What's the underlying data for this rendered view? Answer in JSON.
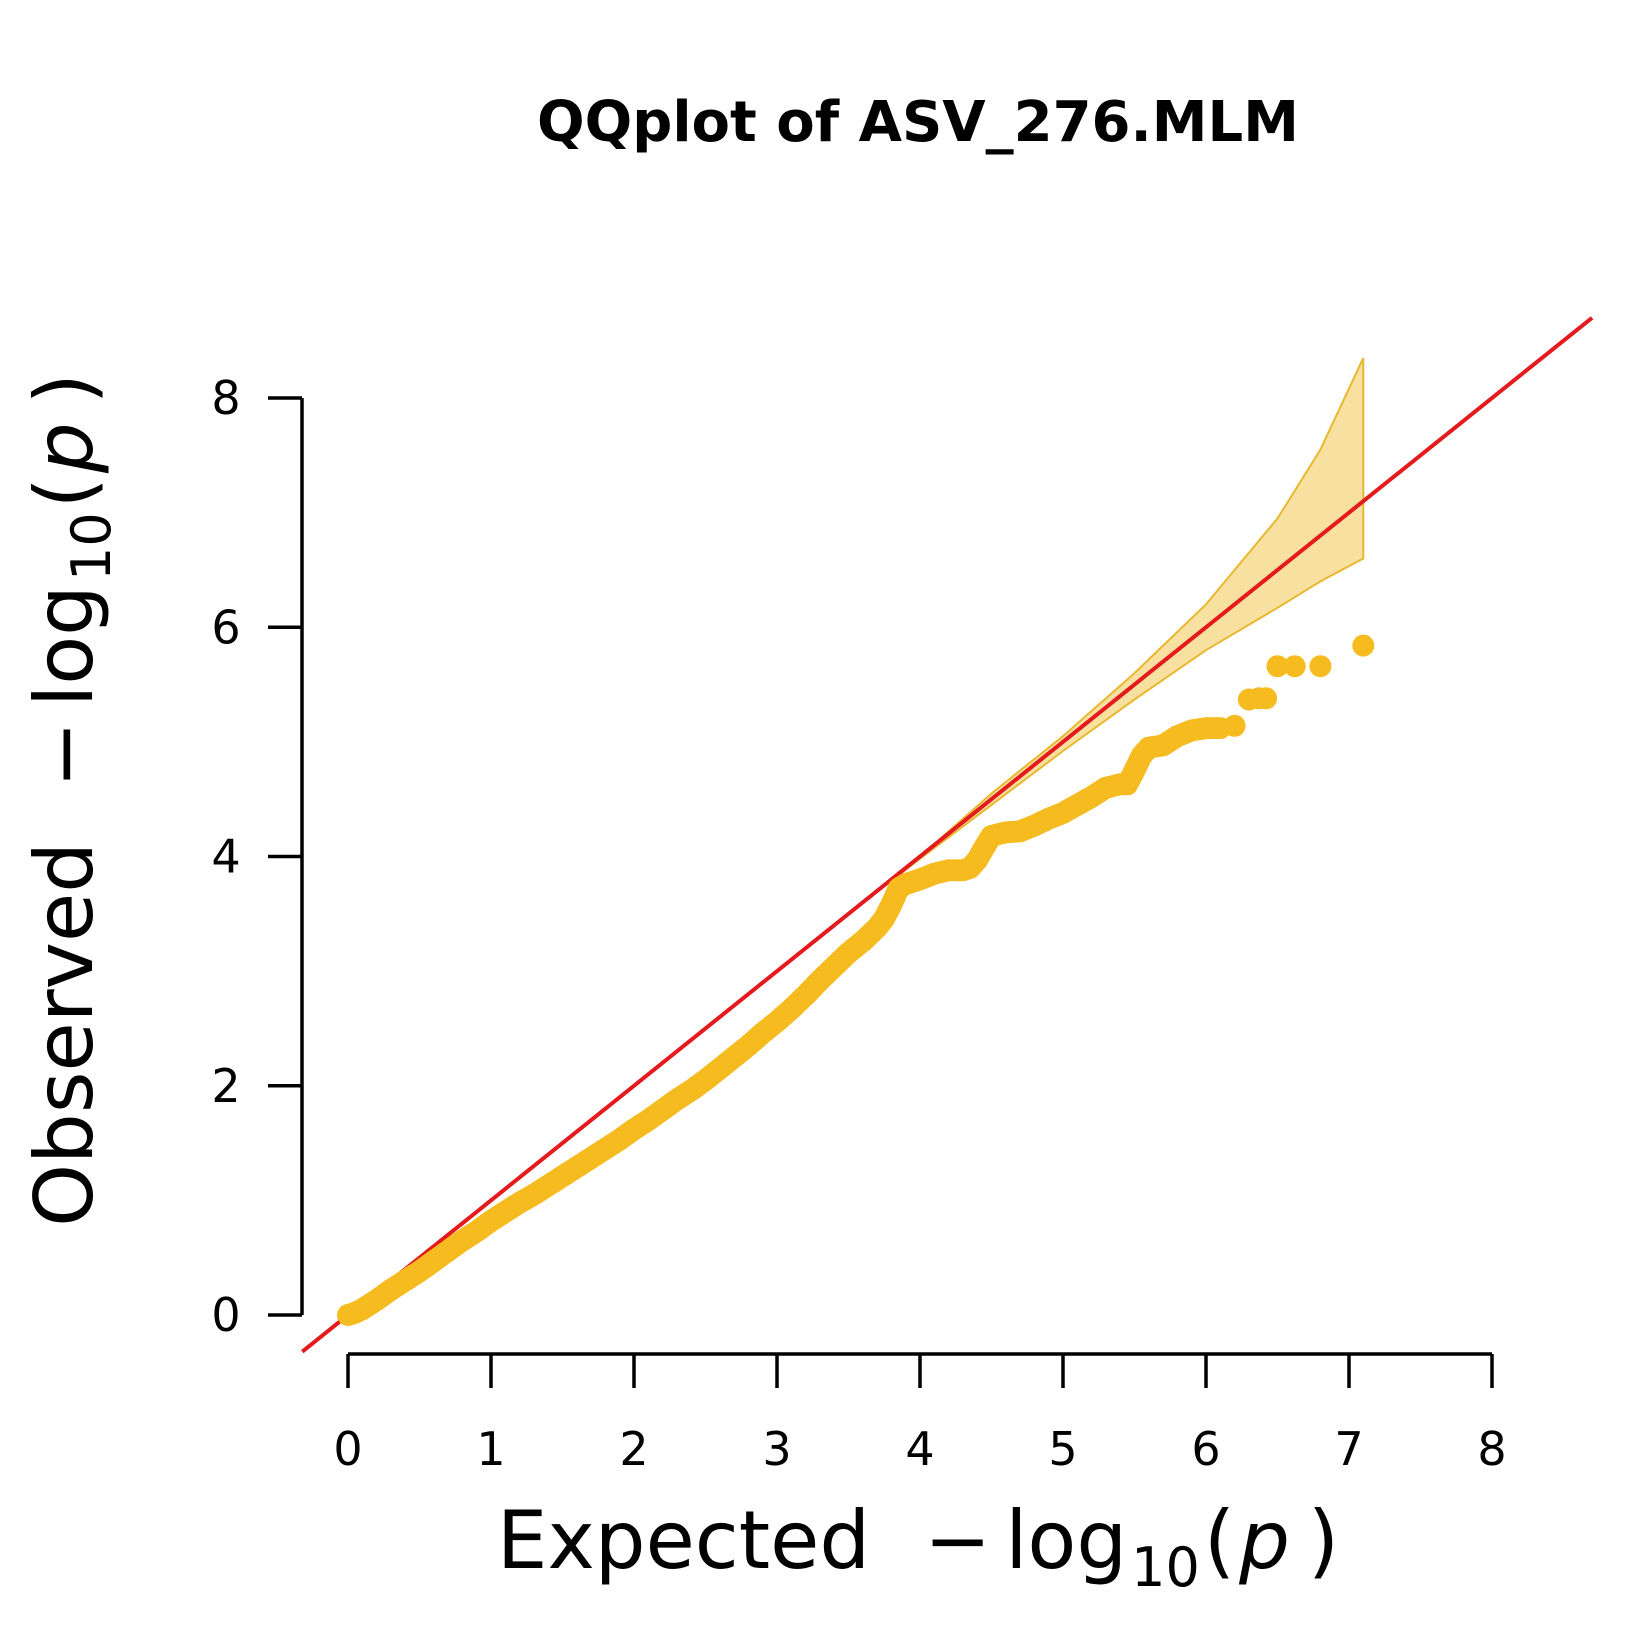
{
  "chart_data": {
    "type": "scatter",
    "title": "QQplot of ASV_276.MLM",
    "xlabel": {
      "main": "Expected",
      "minus": "−",
      "log": "log",
      "base": "10",
      "open": "(",
      "var": "p",
      "close": ")"
    },
    "ylabel": {
      "main": "Observed",
      "minus": "−",
      "log": "log",
      "base": "10",
      "open": "(",
      "var": "p",
      "close": ")"
    },
    "xlim": [
      0,
      8
    ],
    "ylim": [
      0,
      8
    ],
    "x_ticks": [
      "0",
      "1",
      "2",
      "3",
      "4",
      "5",
      "6",
      "7",
      "8"
    ],
    "y_ticks": [
      "0",
      "2",
      "4",
      "6",
      "8"
    ],
    "grid": false,
    "point_color": "#f5bb1f",
    "line_color": "#e41a1c",
    "band_fill": "#f7dc8f",
    "band_stroke": "#e8b830",
    "reference_line": {
      "slope": 1,
      "intercept": 0
    },
    "confidence_band": {
      "x": [
        0.0,
        3.5,
        4.0,
        4.5,
        5.0,
        5.5,
        6.0,
        6.5,
        6.8,
        7.1
      ],
      "upper": [
        0.0,
        3.5,
        4.0,
        4.55,
        5.05,
        5.6,
        6.2,
        6.95,
        7.55,
        8.35
      ],
      "lower": [
        0.0,
        3.5,
        3.98,
        4.45,
        4.92,
        5.37,
        5.8,
        6.17,
        6.4,
        6.6
      ]
    },
    "series": [
      {
        "points": [
          [
            0.0,
            0.0
          ],
          [
            0.05,
            0.02
          ],
          [
            0.1,
            0.05
          ],
          [
            0.2,
            0.13
          ],
          [
            0.3,
            0.22
          ],
          [
            0.4,
            0.3
          ],
          [
            0.5,
            0.38
          ],
          [
            0.6,
            0.47
          ],
          [
            0.7,
            0.56
          ],
          [
            0.8,
            0.65
          ],
          [
            0.9,
            0.73
          ],
          [
            1.0,
            0.82
          ],
          [
            1.1,
            0.9
          ],
          [
            1.2,
            0.98
          ],
          [
            1.3,
            1.05
          ],
          [
            1.4,
            1.13
          ],
          [
            1.5,
            1.21
          ],
          [
            1.6,
            1.29
          ],
          [
            1.7,
            1.37
          ],
          [
            1.8,
            1.45
          ],
          [
            1.9,
            1.53
          ],
          [
            2.0,
            1.62
          ],
          [
            2.1,
            1.7
          ],
          [
            2.2,
            1.79
          ],
          [
            2.3,
            1.88
          ],
          [
            2.4,
            1.96
          ],
          [
            2.5,
            2.05
          ],
          [
            2.6,
            2.15
          ],
          [
            2.7,
            2.25
          ],
          [
            2.8,
            2.35
          ],
          [
            2.9,
            2.46
          ],
          [
            3.0,
            2.56
          ],
          [
            3.1,
            2.67
          ],
          [
            3.2,
            2.79
          ],
          [
            3.3,
            2.92
          ],
          [
            3.4,
            3.04
          ],
          [
            3.5,
            3.16
          ],
          [
            3.6,
            3.26
          ],
          [
            3.7,
            3.38
          ],
          [
            3.75,
            3.46
          ],
          [
            3.8,
            3.58
          ],
          [
            3.85,
            3.72
          ],
          [
            3.9,
            3.76
          ],
          [
            4.0,
            3.8
          ],
          [
            4.1,
            3.85
          ],
          [
            4.2,
            3.88
          ],
          [
            4.3,
            3.88
          ],
          [
            4.35,
            3.9
          ],
          [
            4.4,
            3.97
          ],
          [
            4.45,
            4.08
          ],
          [
            4.5,
            4.18
          ],
          [
            4.6,
            4.21
          ],
          [
            4.7,
            4.22
          ],
          [
            4.8,
            4.27
          ],
          [
            4.9,
            4.33
          ],
          [
            5.0,
            4.38
          ],
          [
            5.1,
            4.45
          ],
          [
            5.2,
            4.52
          ],
          [
            5.3,
            4.6
          ],
          [
            5.4,
            4.63
          ],
          [
            5.45,
            4.63
          ],
          [
            5.5,
            4.75
          ],
          [
            5.55,
            4.88
          ],
          [
            5.6,
            4.95
          ],
          [
            5.7,
            4.97
          ],
          [
            5.8,
            5.05
          ],
          [
            5.9,
            5.1
          ],
          [
            6.0,
            5.12
          ],
          [
            6.1,
            5.12
          ],
          [
            6.2,
            5.14
          ],
          [
            6.3,
            5.37
          ],
          [
            6.37,
            5.38
          ],
          [
            6.42,
            5.38
          ],
          [
            6.5,
            5.66
          ],
          [
            6.62,
            5.66
          ],
          [
            6.8,
            5.66
          ],
          [
            7.1,
            5.84
          ]
        ]
      }
    ]
  }
}
